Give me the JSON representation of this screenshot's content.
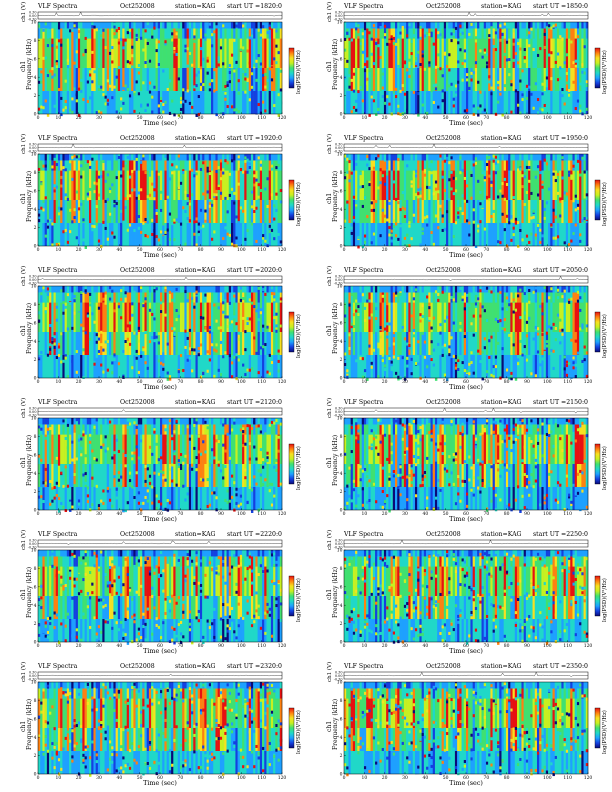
{
  "chart_data": {
    "type": "heatmap",
    "header": {
      "title": "VLF Spectra",
      "date": "Oct252008",
      "station": "station=KAG",
      "start_prefix": "start  UT  ="
    },
    "xlabel": "Time  (sec)",
    "ylabel": "Frequency  (kHz)",
    "ylabel_ch": "ch1",
    "ch_label": "ch1 (V)",
    "colorbar_label": "log(PSD)(V²/Hz)",
    "xlim": [
      0,
      120
    ],
    "ylim": [
      0,
      10
    ],
    "ch_ylim": [
      -0.3,
      0.3
    ],
    "x_ticks": [
      "0",
      "10",
      "20",
      "30",
      "40",
      "50",
      "60",
      "70",
      "80",
      "90",
      "100",
      "110",
      "120"
    ],
    "y_ticks": [
      "0",
      "2",
      "4",
      "6",
      "8",
      "10"
    ],
    "ch_ticks": [
      "0.30",
      "0.00",
      "-0.30"
    ],
    "colormap": [
      "#0a0a78",
      "#1440e0",
      "#1ea0ff",
      "#20d8c8",
      "#40e070",
      "#c8f020",
      "#f8e020",
      "#ff8010",
      "#e81010"
    ],
    "panels": [
      {
        "start_ut": "1820:0"
      },
      {
        "start_ut": "1850:0"
      },
      {
        "start_ut": "1920:0"
      },
      {
        "start_ut": "1950:0"
      },
      {
        "start_ut": "2020:0"
      },
      {
        "start_ut": "2050:0"
      },
      {
        "start_ut": "2120:0"
      },
      {
        "start_ut": "2150:0"
      },
      {
        "start_ut": "2220:0"
      },
      {
        "start_ut": "2250:0"
      },
      {
        "start_ut": "2320:0"
      },
      {
        "start_ut": "2350:0"
      }
    ]
  }
}
